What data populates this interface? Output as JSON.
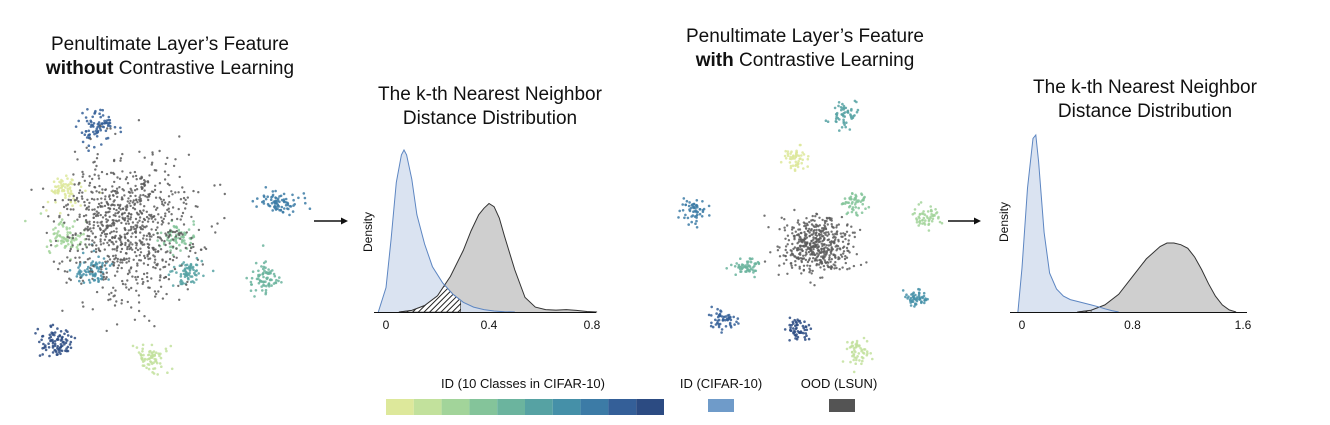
{
  "panels": {
    "left_feature": {
      "title_line1": "Penultimate Layer’s Feature",
      "title_line2_bold": "without",
      "title_line2_rest": " Contrastive Learning"
    },
    "right_feature": {
      "title_line1": "Penultimate Layer’s Feature",
      "title_line2_bold": "with",
      "title_line2_rest": " Contrastive Learning"
    }
  },
  "chart_data": [
    {
      "type": "area",
      "title": "The k-th Nearest Neighbor Distance Distribution",
      "title_line1": "The k-th Nearest Neighbor",
      "title_line2": "Distance Distribution",
      "ylabel": "Density",
      "xlim": [
        0,
        0.8
      ],
      "xticks": [
        "0",
        "0.4",
        "0.8"
      ],
      "series": [
        {
          "name": "ID (CIFAR-10)",
          "x": [
            -0.03,
            0.0,
            0.02,
            0.04,
            0.06,
            0.07,
            0.08,
            0.1,
            0.12,
            0.15,
            0.18,
            0.22,
            0.26,
            0.3,
            0.34,
            0.38,
            0.42,
            0.46,
            0.5
          ],
          "y": [
            0.0,
            0.15,
            0.45,
            0.8,
            0.97,
            1.0,
            0.97,
            0.82,
            0.6,
            0.42,
            0.28,
            0.18,
            0.11,
            0.06,
            0.03,
            0.015,
            0.006,
            0.002,
            0.0
          ]
        },
        {
          "name": "OOD (LSUN)",
          "x": [
            0.05,
            0.1,
            0.15,
            0.2,
            0.25,
            0.3,
            0.33,
            0.36,
            0.38,
            0.4,
            0.42,
            0.44,
            0.46,
            0.5,
            0.54,
            0.58,
            0.62,
            0.66,
            0.7,
            0.74,
            0.78,
            0.82
          ],
          "y": [
            0.0,
            0.01,
            0.04,
            0.1,
            0.22,
            0.38,
            0.5,
            0.6,
            0.64,
            0.67,
            0.65,
            0.58,
            0.47,
            0.26,
            0.09,
            0.03,
            0.015,
            0.012,
            0.015,
            0.01,
            0.003,
            0.0
          ]
        }
      ],
      "overlap_threshold": 0.29
    },
    {
      "type": "area",
      "title": "The k-th Nearest Neighbor Distance Distribution",
      "title_line1": "The k-th Nearest Neighbor",
      "title_line2": "Distance Distribution",
      "ylabel": "Density",
      "xlim": [
        0,
        1.6
      ],
      "xticks": [
        "0",
        "0.8",
        "1.6"
      ],
      "series": [
        {
          "name": "ID (CIFAR-10)",
          "x": [
            -0.03,
            0.0,
            0.04,
            0.08,
            0.1,
            0.12,
            0.16,
            0.2,
            0.25,
            0.3,
            0.35,
            0.4,
            0.45,
            0.5,
            0.55,
            0.6,
            0.65,
            0.7
          ],
          "y": [
            0.0,
            0.25,
            0.7,
            0.98,
            1.0,
            0.85,
            0.45,
            0.22,
            0.13,
            0.09,
            0.07,
            0.06,
            0.05,
            0.04,
            0.03,
            0.018,
            0.008,
            0.0
          ]
        },
        {
          "name": "OOD (LSUN)",
          "x": [
            0.4,
            0.5,
            0.6,
            0.7,
            0.8,
            0.9,
            1.0,
            1.05,
            1.1,
            1.15,
            1.2,
            1.25,
            1.3,
            1.35,
            1.4,
            1.45,
            1.5,
            1.55
          ],
          "y": [
            0.0,
            0.01,
            0.04,
            0.1,
            0.2,
            0.3,
            0.37,
            0.39,
            0.39,
            0.38,
            0.36,
            0.31,
            0.24,
            0.16,
            0.09,
            0.04,
            0.012,
            0.0
          ]
        }
      ],
      "overlap_threshold": 0.5
    }
  ],
  "legend": {
    "id_classes_label": "ID (10 Classes in CIFAR-10)",
    "id_label": "ID (CIFAR-10)",
    "ood_label": "OOD (LSUN)",
    "class_colors": [
      "#dde89b",
      "#c2e19c",
      "#a2d49a",
      "#84c49a",
      "#6bb49e",
      "#56a2a3",
      "#4590a8",
      "#3c7ba6",
      "#345f98",
      "#2c4b82"
    ],
    "id_color": "#6f9bc9",
    "ood_color": "#545454"
  },
  "colors": {
    "id_fill": "#d3deee",
    "id_line": "#5d86c2",
    "ood_fill": "#cfcfcf",
    "ood_line": "#333333",
    "scatter_ood": "#5a5a5a"
  }
}
